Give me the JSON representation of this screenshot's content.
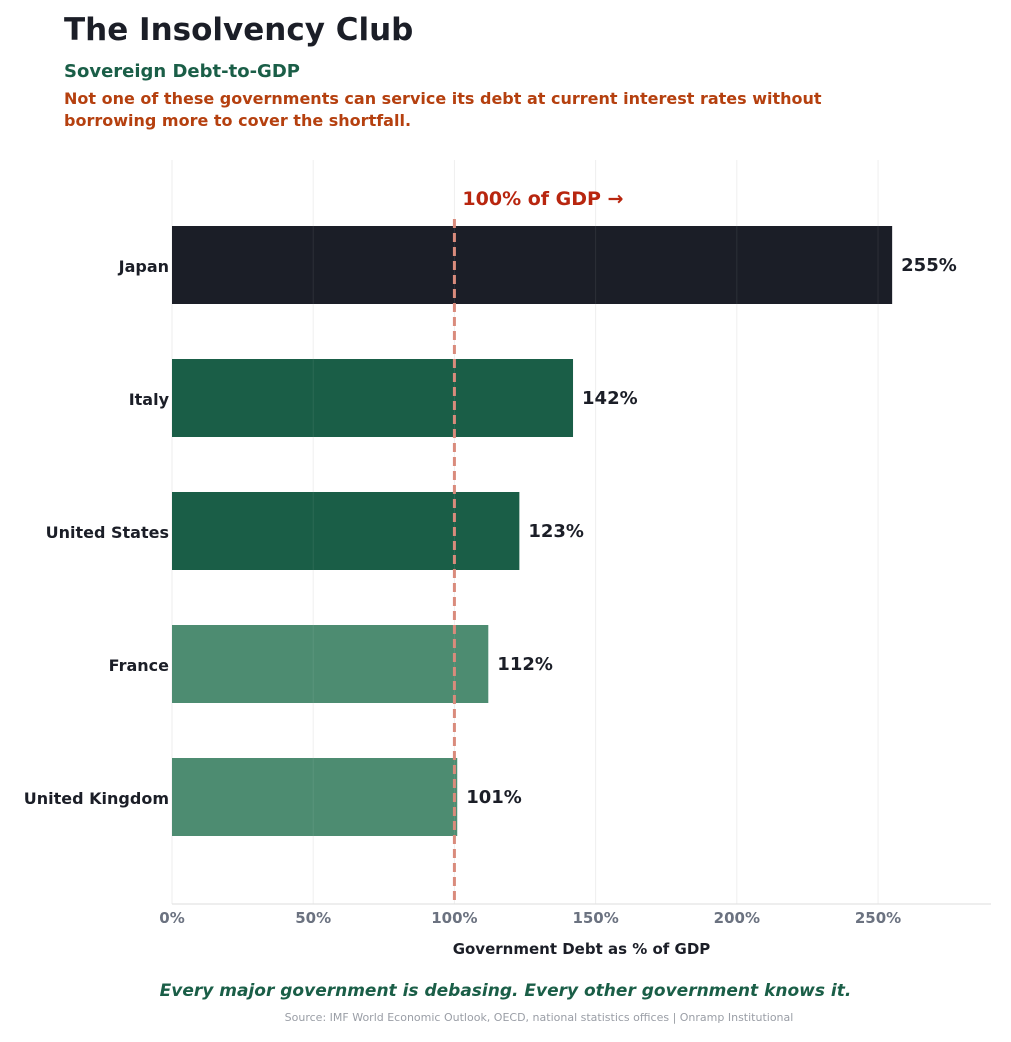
{
  "header": {
    "title": "The Insolvency Club",
    "subtitle": "Sovereign Debt-to-GDP",
    "note": "Not one of these governments can service its debt at current interest rates without borrowing more to cover the shortfall."
  },
  "footer": {
    "quote": "Every major government is debasing. Every other government knows it.",
    "source": "Source: IMF World Economic Outlook, OECD, national statistics offices  |  Onramp Institutional"
  },
  "chart_data": {
    "type": "bar",
    "orientation": "horizontal",
    "categories": [
      "Japan",
      "Italy",
      "United States",
      "France",
      "United Kingdom"
    ],
    "values": [
      255,
      142,
      123,
      112,
      101
    ],
    "value_labels": [
      "255%",
      "142%",
      "123%",
      "112%",
      "101%"
    ],
    "bar_colors": [
      "#1b1e27",
      "#1a5e47",
      "#1a5e47",
      "#4d8c71",
      "#4d8c71"
    ],
    "xlabel": "Government Debt as % of GDP",
    "xlim": [
      0,
      290
    ],
    "xticks": [
      0,
      50,
      100,
      150,
      200,
      250
    ],
    "xtick_labels": [
      "0%",
      "50%",
      "100%",
      "150%",
      "200%",
      "250%"
    ],
    "grid": "vertical",
    "reference_line": {
      "value": 100,
      "label": "100% of GDP →",
      "color": "#d98b7c",
      "label_color": "#b8260f"
    }
  }
}
